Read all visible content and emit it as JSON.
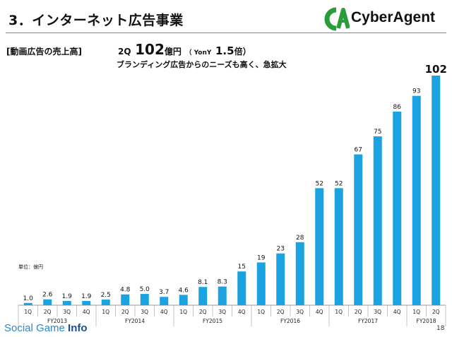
{
  "header": {
    "title": "3．インターネット広告事業",
    "logo_text": "CyberAgent"
  },
  "section_label": "[動画広告の売上高]",
  "headline": {
    "quarter": "2Q",
    "amount": "102",
    "amount_unit": "億円",
    "yoy_open": "（ YonY",
    "yoy_value": "1.5",
    "yoy_unit": "倍）"
  },
  "subline": "ブランディング広告からのニーズも高く、急拡大",
  "unit_label": "単位：億円",
  "footer": {
    "watermark_prefix": "Social Game",
    "watermark_suffix": "Info",
    "page_number": "18"
  },
  "chart_data": {
    "type": "bar",
    "bar_color": "#1aa3e0",
    "categories": [
      "1Q",
      "2Q",
      "3Q",
      "4Q",
      "1Q",
      "2Q",
      "3Q",
      "4Q",
      "1Q",
      "2Q",
      "3Q",
      "4Q",
      "1Q",
      "2Q",
      "3Q",
      "4Q",
      "1Q",
      "2Q",
      "3Q",
      "4Q",
      "1Q",
      "2Q"
    ],
    "values": [
      1.0,
      2.6,
      1.9,
      1.9,
      2.5,
      4.8,
      5.0,
      3.7,
      4.6,
      8.1,
      8.3,
      15,
      19,
      23,
      28,
      52,
      52,
      67,
      75,
      86,
      93,
      102
    ],
    "labels": [
      "1.0",
      "2.6",
      "1.9",
      "1.9",
      "2.5",
      "4.8",
      "5.0",
      "3.7",
      "4.6",
      "8.1",
      "8.3",
      "15",
      "19",
      "23",
      "28",
      "52",
      "52",
      "67",
      "75",
      "86",
      "93",
      "102"
    ],
    "groups": [
      {
        "name": "FY2013",
        "count": 4
      },
      {
        "name": "FY2014",
        "count": 4
      },
      {
        "name": "FY2015",
        "count": 4
      },
      {
        "name": "FY2016",
        "count": 4
      },
      {
        "name": "FY2017",
        "count": 4
      },
      {
        "name": "FY2018",
        "count": 2
      }
    ],
    "ylim": [
      0,
      102
    ],
    "grid": false,
    "legend": "none"
  }
}
